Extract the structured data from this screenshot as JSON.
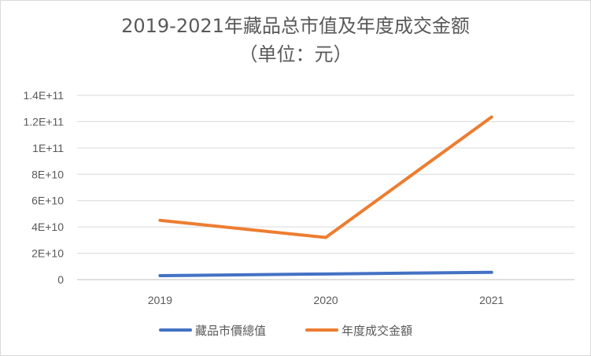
{
  "chart_data": {
    "type": "line",
    "title": "2019-2021年藏品总市值及年度成交金额",
    "subtitle": "（单位：元）",
    "x": [
      "2019",
      "2020",
      "2021"
    ],
    "y_ticks": [
      "0",
      "2E+10",
      "4E+10",
      "6E+10",
      "8E+10",
      "1E+11",
      "1.2E+11",
      "1.4E+11"
    ],
    "ylim": [
      0,
      140000000000
    ],
    "grid": true,
    "legend_position": "bottom",
    "series": [
      {
        "name": "藏品市價總值",
        "color": "#4472c4",
        "values": [
          3000000000,
          4300000000,
          5500000000
        ]
      },
      {
        "name": "年度成交金額",
        "color": "#ed7d31",
        "values": [
          45000000000,
          32000000000,
          123500000000
        ]
      }
    ]
  }
}
